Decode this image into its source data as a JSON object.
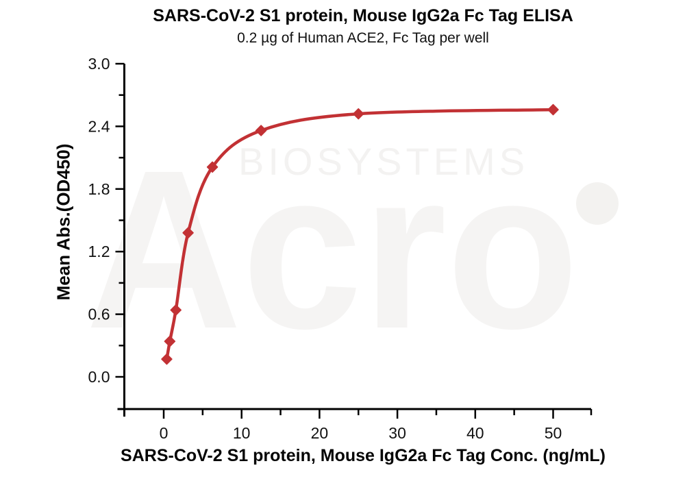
{
  "chart_data": {
    "type": "scatter",
    "title": "SARS-CoV-2 S1 protein, Mouse IgG2a Fc Tag ELISA",
    "subtitle": "0.2 µg of Human ACE2, Fc Tag per well",
    "xlabel": "SARS-CoV-2 S1 protein, Mouse IgG2a Fc Tag Conc. (ng/mL)",
    "ylabel": "Mean Abs.(OD450)",
    "x": [
      0.39,
      0.78,
      1.56,
      3.13,
      6.25,
      12.5,
      25,
      50
    ],
    "y": [
      0.17,
      0.34,
      0.64,
      1.38,
      2.01,
      2.36,
      2.52,
      2.56
    ],
    "curve": "smooth 4PL-style fit through data points",
    "marker": "diamond",
    "series_color": "#c23134",
    "axis_color": "#000000",
    "tick_label_color": "#111111",
    "xlim": [
      0,
      50
    ],
    "ylim": [
      0,
      3
    ],
    "grid": false,
    "legend": null,
    "x_ticks": {
      "major": [
        0,
        10,
        20,
        30,
        40,
        50
      ],
      "labels": [
        "0",
        "10",
        "20",
        "30",
        "40",
        "50"
      ],
      "minor": [
        5,
        15,
        25,
        35,
        45
      ]
    },
    "y_ticks": {
      "major": [
        0,
        0.6,
        1.2,
        1.8,
        2.4,
        3.0
      ],
      "labels": [
        "0.0",
        "0.6",
        "1.2",
        "1.8",
        "2.4",
        "3.0"
      ],
      "minor": [
        0.3,
        0.9,
        1.5,
        2.1,
        2.7
      ]
    }
  },
  "watermark": {
    "text": "Acro",
    "subtext": "BIOSYSTEMS",
    "text_color": "#f5f4f3",
    "subtext_color": "#f3f2f1",
    "dot_color": "#f3f2f0"
  }
}
